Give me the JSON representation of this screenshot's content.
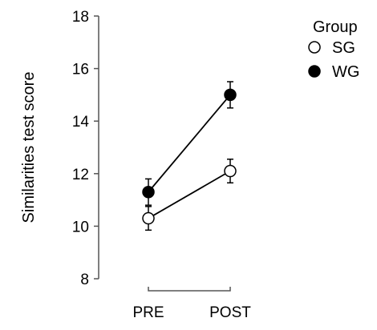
{
  "chart_data": {
    "type": "line",
    "categories": [
      "PRE",
      "POST"
    ],
    "ylabel": "Similarities test score",
    "xlabel": "",
    "ylim": [
      8,
      18
    ],
    "yticks": [
      "8",
      "10",
      "12",
      "14",
      "16",
      "18"
    ],
    "legend": {
      "title": "Group",
      "placement": "top-right"
    },
    "series": [
      {
        "name": "SG",
        "marker": "open-circle",
        "values": [
          10.3,
          12.1
        ],
        "errors": [
          0.45,
          0.45
        ]
      },
      {
        "name": "WG",
        "marker": "filled-circle",
        "values": [
          11.3,
          15.0
        ],
        "errors": [
          0.5,
          0.5
        ]
      }
    ],
    "grid": false
  }
}
